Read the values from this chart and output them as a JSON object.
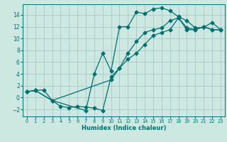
{
  "xlabel": "Humidex (Indice chaleur)",
  "bg_color": "#cce8e0",
  "grid_color": "#aacfc8",
  "line_color": "#007070",
  "xlim": [
    -0.5,
    23.5
  ],
  "ylim": [
    -3.2,
    15.8
  ],
  "xticks": [
    0,
    1,
    2,
    3,
    4,
    5,
    6,
    7,
    8,
    9,
    10,
    11,
    12,
    13,
    14,
    15,
    16,
    17,
    18,
    19,
    20,
    21,
    22,
    23
  ],
  "yticks": [
    -2,
    0,
    2,
    4,
    6,
    8,
    10,
    12,
    14
  ],
  "curve1_x": [
    0,
    1,
    2,
    3,
    4,
    5,
    6,
    7,
    8,
    9,
    10,
    11,
    12,
    13,
    14,
    15,
    16,
    17,
    18,
    19,
    20,
    21,
    22,
    23
  ],
  "curve1_y": [
    1.0,
    1.2,
    1.3,
    -0.5,
    -1.5,
    -1.7,
    -1.5,
    -1.6,
    -1.8,
    -2.2,
    3.5,
    5.0,
    7.5,
    9.5,
    11.0,
    11.5,
    11.8,
    13.0,
    13.5,
    11.8,
    11.5,
    12.0,
    11.5,
    11.5
  ],
  "curve2_x": [
    0,
    1,
    3,
    7,
    8,
    9,
    10,
    11,
    12,
    13,
    14,
    15,
    16,
    17,
    18,
    19,
    20,
    21,
    22,
    23
  ],
  "curve2_y": [
    1.0,
    1.2,
    -0.5,
    -2.2,
    4.0,
    7.5,
    4.5,
    12.0,
    12.0,
    14.5,
    14.2,
    15.0,
    15.2,
    14.7,
    13.7,
    13.0,
    11.8,
    11.9,
    12.7,
    11.5
  ],
  "curve3_x": [
    0,
    1,
    3,
    10,
    11,
    12,
    13,
    14,
    15,
    16,
    17,
    18,
    19,
    20,
    21,
    22,
    23
  ],
  "curve3_y": [
    1.0,
    1.2,
    -0.5,
    3.0,
    5.0,
    6.5,
    7.5,
    9.0,
    10.5,
    11.0,
    11.5,
    13.5,
    11.5,
    11.5,
    12.0,
    11.5,
    11.5
  ],
  "marker_size": 2.5,
  "line_width": 0.9,
  "xlabel_fontsize": 6.0,
  "xtick_fontsize": 4.8,
  "ytick_fontsize": 5.5
}
